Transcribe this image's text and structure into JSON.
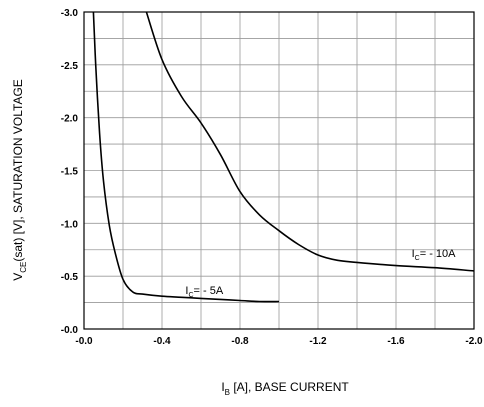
{
  "chart_data": {
    "type": "line",
    "xlabel_sym": "I",
    "xlabel_sub": "B",
    "xlabel_rest": " [A], BASE CURRENT",
    "ylabel_sym": "V",
    "ylabel_sub": "CE",
    "ylabel_rest": "(sat) [V], SATURATION VOLTAGE",
    "xlim": [
      0.0,
      -2.0
    ],
    "ylim": [
      0.0,
      -3.0
    ],
    "x_ticks": [
      "-0.0",
      "-0.4",
      "-0.8",
      "-1.2",
      "-1.6",
      "-2.0"
    ],
    "y_ticks": [
      "-0.0",
      "-0.5",
      "-1.0",
      "-1.5",
      "-2.0",
      "-2.5",
      "-3.0"
    ],
    "grid": true,
    "series": [
      {
        "name": "-5A",
        "annotation_sym": "I",
        "annotation_sub": "C",
        "annotation_rest": "= - 5A",
        "x": [
          -0.048,
          -0.06,
          -0.08,
          -0.1,
          -0.13,
          -0.16,
          -0.2,
          -0.25,
          -0.3,
          -0.4,
          -0.5,
          -0.6,
          -0.7,
          -0.8,
          -0.9,
          -1.0
        ],
        "y": [
          -3.0,
          -2.5,
          -1.85,
          -1.4,
          -0.98,
          -0.72,
          -0.47,
          -0.35,
          -0.33,
          -0.31,
          -0.3,
          -0.29,
          -0.28,
          -0.27,
          -0.26,
          -0.26
        ]
      },
      {
        "name": "-10A",
        "annotation_sym": "I",
        "annotation_sub": "C",
        "annotation_rest": "= - 10A",
        "x": [
          -0.32,
          -0.4,
          -0.5,
          -0.6,
          -0.7,
          -0.8,
          -0.9,
          -1.0,
          -1.1,
          -1.2,
          -1.3,
          -1.4,
          -1.6,
          -1.8,
          -2.0
        ],
        "y": [
          -3.0,
          -2.55,
          -2.2,
          -1.95,
          -1.65,
          -1.3,
          -1.08,
          -0.93,
          -0.8,
          -0.7,
          -0.65,
          -0.63,
          -0.6,
          -0.58,
          -0.55
        ]
      }
    ]
  }
}
